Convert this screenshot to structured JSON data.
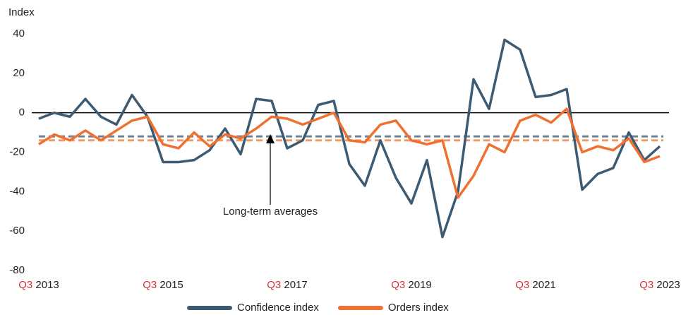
{
  "chart_data": {
    "type": "line",
    "y_label": "Index",
    "categories": [
      "Q3 2013",
      null,
      null,
      null,
      null,
      null,
      null,
      null,
      "Q3 2015",
      null,
      null,
      null,
      null,
      null,
      null,
      null,
      "Q3 2017",
      null,
      null,
      null,
      null,
      null,
      null,
      null,
      "Q3 2019",
      null,
      null,
      null,
      null,
      null,
      null,
      null,
      "Q3 2021",
      null,
      null,
      null,
      null,
      null,
      null,
      null,
      "Q3 2023"
    ],
    "series": [
      {
        "name": "Confidence index",
        "color": "#3d5a73",
        "values": [
          -3,
          0,
          -2,
          7,
          -2,
          -6,
          9,
          -2,
          -25,
          -25,
          -24,
          -19,
          -8,
          -21,
          7,
          6,
          -18,
          -14,
          4,
          6,
          -26,
          -37,
          -14,
          -33,
          -46,
          -24,
          -63,
          -40,
          17,
          2,
          37,
          32,
          8,
          9,
          12,
          -39,
          -31,
          -28,
          -10,
          -24,
          -17
        ]
      },
      {
        "name": "Orders index",
        "color": "#f07030",
        "values": [
          -16,
          -11,
          -14,
          -9,
          -14,
          -9,
          -4,
          -2,
          -16,
          -18,
          -10,
          -17,
          -11,
          -13,
          -8,
          -2,
          -3,
          -6,
          -3,
          0,
          -14,
          -15,
          -6,
          -4,
          -14,
          -16,
          -14,
          -43,
          -32,
          -16,
          -20,
          -4,
          -1,
          -5,
          2,
          -20,
          -17,
          -19,
          -13,
          -25,
          -22
        ]
      }
    ],
    "averages": [
      {
        "series": "Confidence index",
        "value": -12,
        "color": "#6f8397"
      },
      {
        "series": "Orders index",
        "value": -14,
        "color": "#f39a66"
      }
    ],
    "annotation": "Long-term averages",
    "ylim": [
      -80,
      40
    ],
    "yticks": [
      -80,
      -60,
      -40,
      -20,
      0,
      20,
      40
    ],
    "grid": false,
    "legend": "bottom"
  }
}
